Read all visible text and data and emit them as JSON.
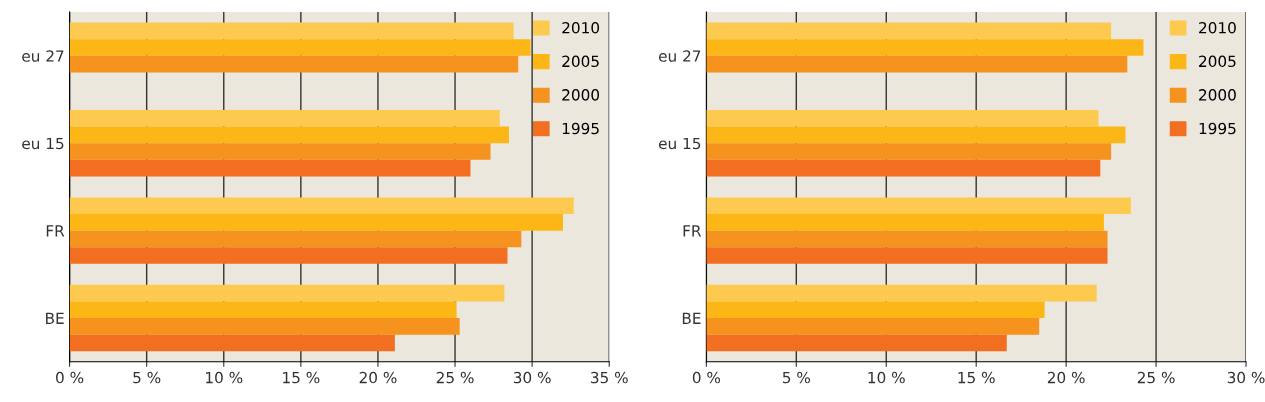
{
  "chart_data": [
    {
      "type": "bar",
      "orientation": "horizontal",
      "categories": [
        "eu 27",
        "eu 15",
        "FR",
        "BE"
      ],
      "xlim": [
        0,
        35
      ],
      "xticks": [
        {
          "value": 0,
          "label": "0 %"
        },
        {
          "value": 5,
          "label": "5 %"
        },
        {
          "value": 10,
          "label": "10 %"
        },
        {
          "value": 15,
          "label": "15 %"
        },
        {
          "value": 20,
          "label": "20 %"
        },
        {
          "value": 25,
          "label": "25 %"
        },
        {
          "value": 30,
          "label": "30 %"
        },
        {
          "value": 35,
          "label": "35 %"
        }
      ],
      "grid": "x",
      "legend": "top right",
      "series": [
        {
          "name": "2010",
          "color": "#fdca4f",
          "values": [
            28.8,
            27.9,
            32.7,
            28.2
          ]
        },
        {
          "name": "2005",
          "color": "#fcb716",
          "values": [
            29.9,
            28.5,
            32.0,
            25.1
          ]
        },
        {
          "name": "2000",
          "color": "#f6921e",
          "values": [
            29.1,
            27.3,
            29.3,
            25.3
          ]
        },
        {
          "name": "1995",
          "color": "#f26f22",
          "values": [
            null,
            26.0,
            28.4,
            21.1
          ]
        }
      ]
    },
    {
      "type": "bar",
      "orientation": "horizontal",
      "categories": [
        "eu 27",
        "eu 15",
        "FR",
        "BE"
      ],
      "xlim": [
        0,
        30
      ],
      "xticks": [
        {
          "value": 0,
          "label": "0 %"
        },
        {
          "value": 5,
          "label": "5 %"
        },
        {
          "value": 10,
          "label": "10 %"
        },
        {
          "value": 15,
          "label": "15 %"
        },
        {
          "value": 20,
          "label": "20 %"
        },
        {
          "value": 25,
          "label": "25 %"
        },
        {
          "value": 30,
          "label": "30 %"
        }
      ],
      "grid": "x",
      "legend": "top right",
      "series": [
        {
          "name": "2010",
          "color": "#fdca4f",
          "values": [
            22.5,
            21.8,
            23.6,
            21.7
          ]
        },
        {
          "name": "2005",
          "color": "#fcb716",
          "values": [
            24.3,
            23.3,
            22.1,
            18.8
          ]
        },
        {
          "name": "2000",
          "color": "#f6921e",
          "values": [
            23.4,
            22.5,
            22.3,
            18.5
          ]
        },
        {
          "name": "1995",
          "color": "#f26f22",
          "values": [
            null,
            21.9,
            22.3,
            16.7
          ]
        }
      ]
    }
  ]
}
